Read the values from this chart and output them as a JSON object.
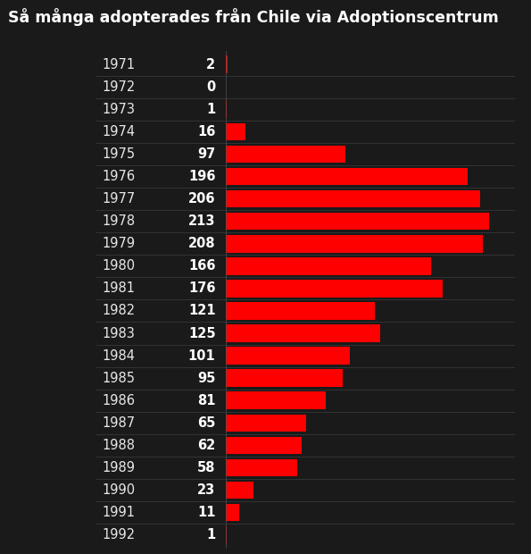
{
  "title": "Så många adopterades från Chile via Adoptionscentrum",
  "background_color": "#1a1a1a",
  "bar_color": "#ff0000",
  "text_color": "#ffffff",
  "divider_color": "#555555",
  "years": [
    1971,
    1972,
    1973,
    1974,
    1975,
    1976,
    1977,
    1978,
    1979,
    1980,
    1981,
    1982,
    1983,
    1984,
    1985,
    1986,
    1987,
    1988,
    1989,
    1990,
    1991,
    1992
  ],
  "values": [
    2,
    0,
    1,
    16,
    97,
    196,
    206,
    213,
    208,
    166,
    176,
    121,
    125,
    101,
    95,
    81,
    65,
    62,
    58,
    23,
    11,
    1
  ],
  "year_fontsize": 10.5,
  "value_fontsize": 10.5,
  "title_fontsize": 12.5
}
